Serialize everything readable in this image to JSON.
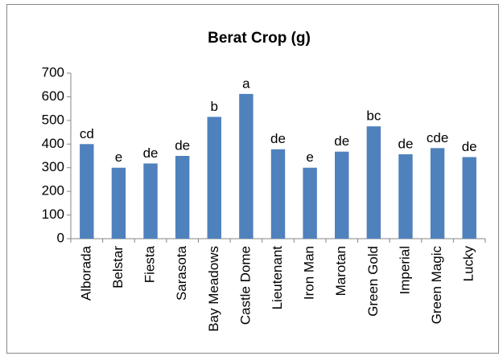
{
  "chart_data": {
    "type": "bar",
    "title": "Berat Crop (g)",
    "categories": [
      "Alborada",
      "Belstar",
      "Fiesta",
      "Sarasota",
      "Bay Meadows",
      "Castle Dome",
      "Lieutenant",
      "Iron Man",
      "Marotan",
      "Green Gold",
      "Imperial",
      "Green Magic",
      "Lucky"
    ],
    "values": [
      400,
      300,
      318,
      350,
      515,
      612,
      378,
      300,
      368,
      475,
      357,
      383,
      345
    ],
    "annotations": [
      "cd",
      "e",
      "de",
      "de",
      "b",
      "a",
      "de",
      "e",
      "de",
      "bc",
      "de",
      "cde",
      "de"
    ],
    "color": "#4f81bd",
    "ylim": [
      0,
      700
    ],
    "yticks": [
      0,
      100,
      200,
      300,
      400,
      500,
      600,
      700
    ],
    "grid": false
  }
}
